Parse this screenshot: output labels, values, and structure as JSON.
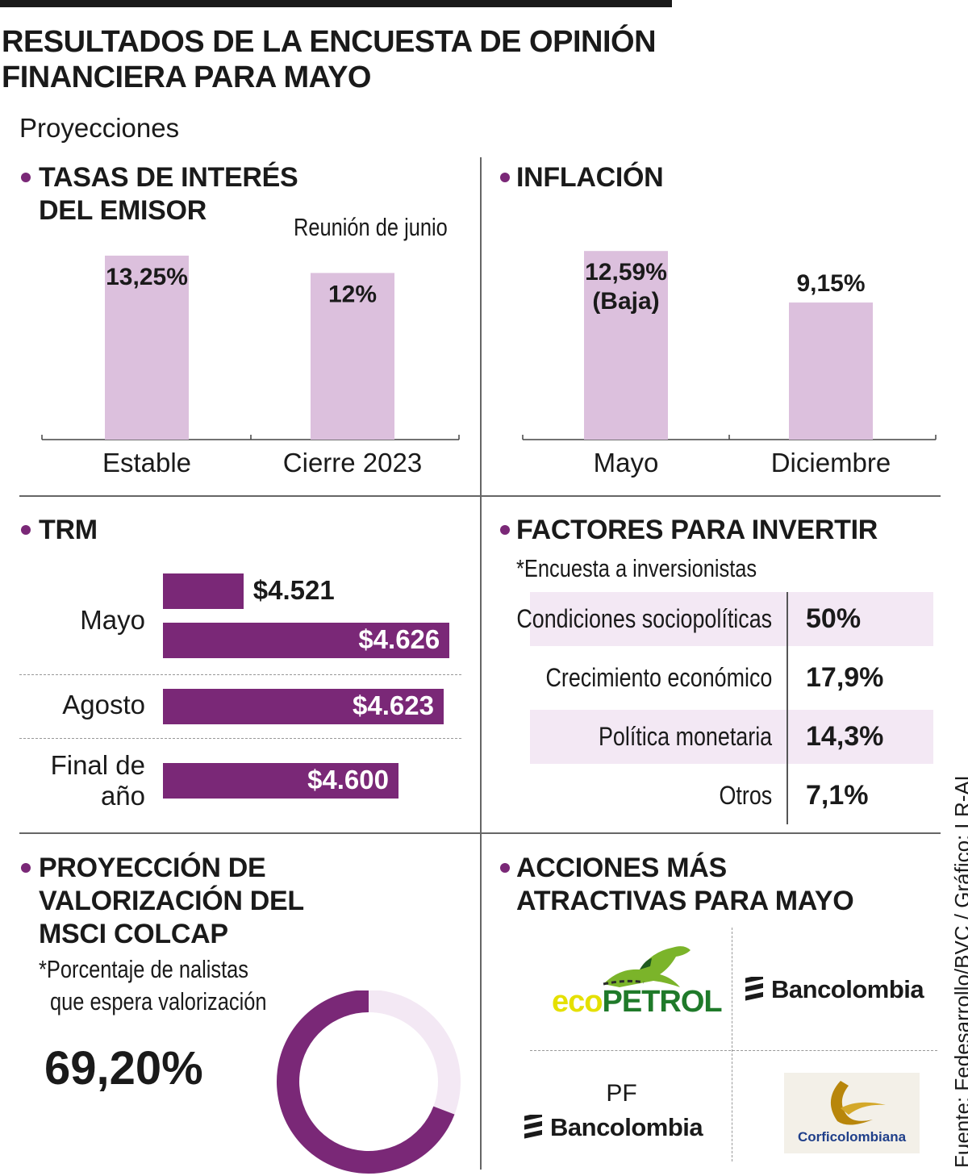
{
  "title_lines": [
    "RESULTADOS DE LA ENCUESTA DE OPINIÓN",
    "FINANCIERA PARA MAYO"
  ],
  "subtitle": "Proyecciones",
  "source": "Fuente: Fedesarrollo/BVC / Gráfico: LR-AL",
  "colors": {
    "accent": "#7a2877",
    "bar_light": "#dcc0dd",
    "row_light": "#f3e8f4",
    "donut_light": "#f3e8f4"
  },
  "tasas": {
    "title_lines": [
      "TASAS DE INTERÉS",
      "DEL EMISOR"
    ],
    "note": "Reunión de junio"
  },
  "inflacion": {
    "title": "INFLACIÓN"
  },
  "trm": {
    "title": "TRM"
  },
  "factores": {
    "title": "FACTORES PARA INVERTIR",
    "note": "*Encuesta a inversionistas"
  },
  "msci": {
    "title_lines": [
      "PROYECCIÓN DE",
      "VALORIZACIÓN DEL",
      "MSCI COLCAP"
    ],
    "note_lines": [
      "*Porcentaje de nalistas",
      "que espera valorización"
    ],
    "value_label": "69,20%"
  },
  "acciones": {
    "title_lines": [
      "ACCIONES MÁS",
      "ATRACTIVAS PARA MAYO"
    ],
    "logos": {
      "ecopetrol_a": "eco",
      "ecopetrol_b": "PETROL",
      "bancolombia": "Bancolombia",
      "pf_prefix": "PF",
      "pf_bancolombia": "Bancolombia",
      "corficolombiana": "Corficolombiana"
    }
  },
  "chart_data": [
    {
      "type": "bar",
      "title": "TASAS DE INTERÉS DEL EMISOR",
      "categories": [
        "Estable",
        "Cierre 2023"
      ],
      "values": [
        13.25,
        12
      ],
      "labels": [
        "13,25%",
        "12%"
      ],
      "ylim": [
        0,
        14
      ]
    },
    {
      "type": "bar",
      "title": "INFLACIÓN",
      "categories": [
        "Mayo",
        "Diciembre"
      ],
      "values": [
        12.59,
        9.15
      ],
      "labels": [
        [
          "12,59%",
          "(Baja)"
        ],
        [
          "9,15%"
        ]
      ],
      "ylim": [
        0,
        14
      ]
    },
    {
      "type": "bar",
      "orientation": "horizontal",
      "title": "TRM",
      "categories": [
        "Mayo",
        "Agosto",
        "Final de año"
      ],
      "category_lines": [
        [
          "Mayo"
        ],
        [
          "Agosto"
        ],
        [
          "Final de",
          "año"
        ]
      ],
      "series_bars": [
        {
          "category": "Mayo",
          "value": 4521,
          "label": "$4.521"
        },
        {
          "category": "Mayo",
          "value": 4626,
          "label": "$4.626"
        },
        {
          "category": "Agosto",
          "value": 4623,
          "label": "$4.623"
        },
        {
          "category": "Final de año",
          "value": 4600,
          "label": "$4.600"
        }
      ],
      "xlim": [
        4480,
        4630
      ]
    },
    {
      "type": "table",
      "title": "FACTORES PARA INVERTIR",
      "rows": [
        {
          "label": "Condiciones sociopolíticas",
          "value": "50%"
        },
        {
          "label": "Crecimiento económico",
          "value": "17,9%"
        },
        {
          "label": "Política monetaria",
          "value": "14,3%"
        },
        {
          "label": "Otros",
          "value": "7,1%"
        }
      ]
    },
    {
      "type": "pie",
      "title": "PROYECCIÓN DE VALORIZACIÓN DEL MSCI COLCAP",
      "slices": [
        {
          "name": "Espera valorización",
          "value": 69.2
        },
        {
          "name": "Resto",
          "value": 30.8
        }
      ],
      "donut": true,
      "label": "69,20%"
    }
  ]
}
